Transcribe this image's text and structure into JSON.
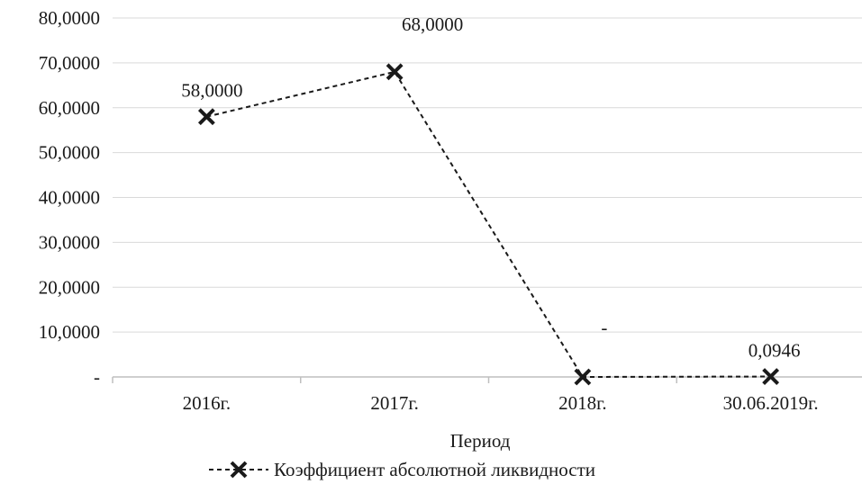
{
  "chart_data": {
    "type": "line",
    "title": "",
    "xlabel": "Период",
    "ylabel": "",
    "categories": [
      "2016г.",
      "2017г.",
      "2018г.",
      "30.06.2019г."
    ],
    "series": [
      {
        "name": "Коэффициент абсолютной ликвидности",
        "values": [
          58.0,
          68.0,
          0,
          0.0946
        ],
        "data_labels": [
          "58,0000",
          "68,0000",
          "-",
          "0,0946"
        ],
        "color": "#1a1a1a",
        "line_style": "dashed",
        "marker": "x"
      }
    ],
    "ylim": [
      0,
      80
    ],
    "yticks": [
      0,
      10,
      20,
      30,
      40,
      50,
      60,
      70,
      80
    ],
    "ytick_labels": [
      "-",
      "10,0000",
      "20,0000",
      "30,0000",
      "40,0000",
      "50,0000",
      "60,0000",
      "70,0000",
      "80,0000"
    ],
    "grid": true,
    "legend_position": "bottom"
  }
}
